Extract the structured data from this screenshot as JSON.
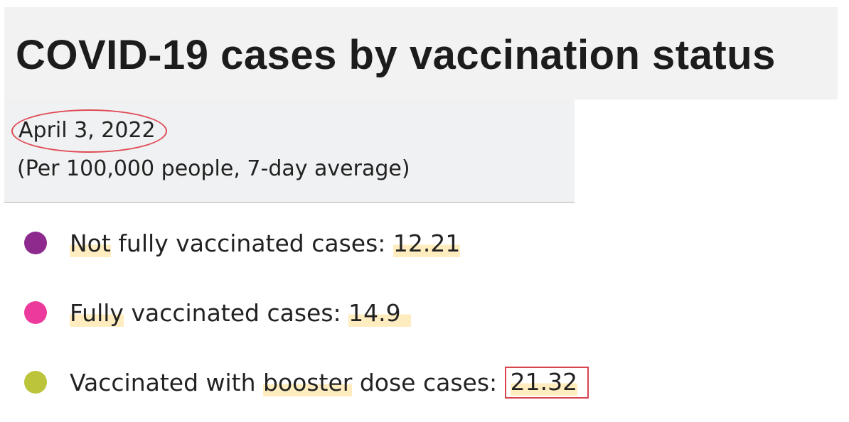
{
  "header": {
    "title": "COVID-19 cases by vaccination status"
  },
  "info": {
    "date": "April 3, 2022",
    "subtitle": "(Per 100,000 people, 7-day average)"
  },
  "items": [
    {
      "color": "#8e2a8e",
      "parts": [
        "Not",
        " fully vaccinated cases: "
      ],
      "value": "12.21"
    },
    {
      "color": "#ec3a9c",
      "parts": [
        "Fully",
        " vaccinated cases: "
      ],
      "value": "14.9"
    },
    {
      "color": "#bcc43c",
      "parts": [
        "Vaccinated with ",
        "booster",
        " dose cases: "
      ],
      "value": "21.32"
    }
  ]
}
